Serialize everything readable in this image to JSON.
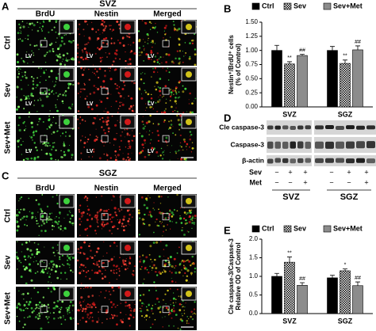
{
  "panels": {
    "A": {
      "label": "A",
      "title": "SVZ",
      "columns": [
        "BrdU",
        "Nestin",
        "Merged"
      ],
      "rows": [
        "Ctrl",
        "Sev",
        "Sev+Met"
      ],
      "region": "LV"
    },
    "C": {
      "label": "C",
      "title": "SGZ",
      "columns": [
        "BrdU",
        "Nestin",
        "Merged"
      ],
      "rows": [
        "Ctrl",
        "Sev",
        "Sev+Met"
      ]
    },
    "D": {
      "label": "D",
      "bands": [
        "Cle caspase-3",
        "Caspase-3",
        "β-actin"
      ],
      "treatments": [
        {
          "name": "Sev",
          "signs": [
            "−",
            "+",
            "+"
          ]
        },
        {
          "name": "Met",
          "signs": [
            "−",
            "−",
            "+"
          ]
        }
      ],
      "groups": [
        "SVZ",
        "SGZ"
      ]
    }
  },
  "chart_data": [
    {
      "type": "bar",
      "panel_label": "B",
      "ylabel": [
        "Nestin⁺/BrdU⁺ cells",
        "(% of Control)"
      ],
      "categories": [
        "SVZ",
        "SGZ"
      ],
      "ylim": [
        0,
        1.5
      ],
      "yticks": [
        {
          "value": 0,
          "label": "0.00"
        },
        {
          "value": 0.25,
          "label": "0.25"
        },
        {
          "value": 0.5,
          "label": "0.50"
        },
        {
          "value": 0.75,
          "label": "0.75"
        },
        {
          "value": 1,
          "label": "1.00"
        },
        {
          "value": 1.25,
          "label": "1.25"
        },
        {
          "value": 1.5,
          "label": "1.50"
        }
      ],
      "legend": "top",
      "series": [
        {
          "name": "Ctrl",
          "color": "#000000",
          "values": [
            1.0,
            1.0
          ],
          "errors": [
            0.09,
            0.07
          ]
        },
        {
          "name": "Sev",
          "color": "#ffffff",
          "pattern": "checker",
          "values": [
            0.76,
            0.77
          ],
          "errors": [
            0.04,
            0.06
          ],
          "labels": [
            "**",
            "**"
          ]
        },
        {
          "name": "Sev+Met",
          "color": "#8c8c8c",
          "values": [
            0.91,
            1.01
          ],
          "errors": [
            0.02,
            0.07
          ],
          "labels": [
            "##",
            "##"
          ]
        }
      ]
    },
    {
      "type": "bar",
      "panel_label": "E",
      "ylabel": [
        "Cle caspase-3/Caspase-3",
        "Relative OD of Control"
      ],
      "categories": [
        "SVZ",
        "SGZ"
      ],
      "ylim": [
        0,
        2
      ],
      "yticks": [
        {
          "value": 0,
          "label": "0.0"
        },
        {
          "value": 0.5,
          "label": "0.5"
        },
        {
          "value": 1,
          "label": "1.0"
        },
        {
          "value": 1.5,
          "label": "1.5"
        },
        {
          "value": 2,
          "label": "2.0"
        }
      ],
      "legend": "top",
      "series": [
        {
          "name": "Ctrl",
          "color": "#000000",
          "values": [
            1.0,
            0.96
          ],
          "errors": [
            0.08,
            0.07
          ]
        },
        {
          "name": "Sev",
          "color": "#ffffff",
          "pattern": "checker",
          "values": [
            1.38,
            1.15
          ],
          "errors": [
            0.14,
            0.05
          ],
          "labels": [
            "**",
            "*"
          ]
        },
        {
          "name": "Sev+Met",
          "color": "#8c8c8c",
          "values": [
            0.76,
            0.75
          ],
          "errors": [
            0.07,
            0.1
          ],
          "labels": [
            "##",
            "##"
          ]
        }
      ]
    }
  ]
}
